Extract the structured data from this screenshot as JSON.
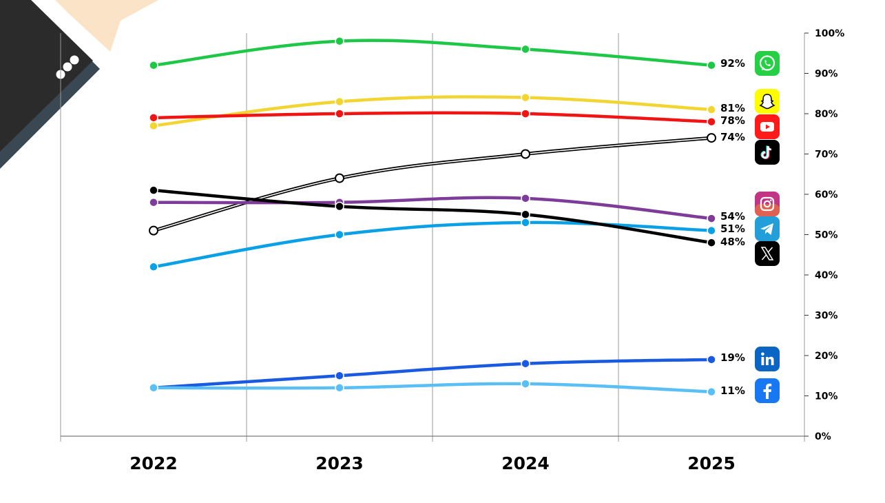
{
  "chart_data": {
    "type": "line",
    "x": [
      "2022",
      "2023",
      "2024",
      "2025"
    ],
    "ylim": [
      0,
      100
    ],
    "y_ticks": [
      "0%",
      "10%",
      "20%",
      "30%",
      "40%",
      "50%",
      "60%",
      "70%",
      "80%",
      "90%",
      "100%"
    ],
    "y_axis_side": "right",
    "grid": "vertical",
    "series": [
      {
        "icon": "whatsapp-icon",
        "color": "#1ec846",
        "values": [
          92,
          98,
          96,
          92
        ],
        "end_label": "92%"
      },
      {
        "icon": "snapchat-icon",
        "color": "#f2d530",
        "values": [
          77,
          83,
          84,
          81
        ],
        "end_label": "81%"
      },
      {
        "icon": "youtube-icon",
        "color": "#f01414",
        "values": [
          79,
          80,
          80,
          78
        ],
        "end_label": "78%"
      },
      {
        "icon": "tiktok-icon",
        "color": "#000000",
        "style": "double",
        "values": [
          51,
          64,
          70,
          74
        ],
        "end_label": "74%"
      },
      {
        "icon": "instagram-icon",
        "color": "#7d3c98",
        "values": [
          58,
          58,
          59,
          54
        ],
        "end_label": "54%"
      },
      {
        "icon": "telegram-icon",
        "color": "#0aa0e6",
        "values": [
          42,
          50,
          53,
          51
        ],
        "end_label": "51%"
      },
      {
        "icon": "x-icon",
        "color": "#000000",
        "values": [
          61,
          57,
          55,
          48
        ],
        "end_label": "48%"
      },
      {
        "icon": "linkedin-icon",
        "color": "#1a5ae0",
        "values": [
          12,
          15,
          18,
          19
        ],
        "end_label": "19%"
      },
      {
        "icon": "facebook-icon",
        "color": "#5abff5",
        "values": [
          12,
          12,
          13,
          11
        ],
        "end_label": "11%"
      }
    ]
  }
}
